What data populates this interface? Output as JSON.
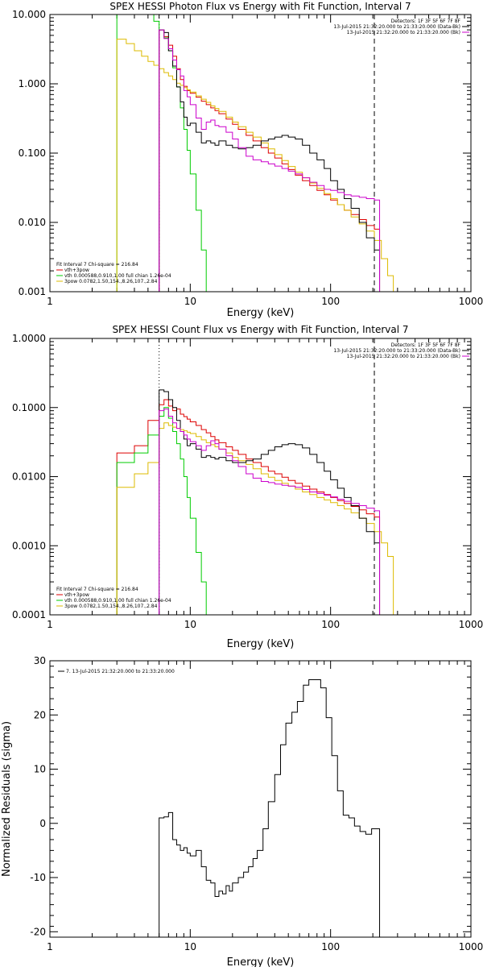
{
  "colors": {
    "data": "#000000",
    "vth_3pow": "#dd0000",
    "vth": "#00cc00",
    "3pow": "#ddbb00",
    "background": "#cc00cc"
  },
  "chart_data": [
    {
      "type": "line",
      "title": "SPEX HESSI Photon Flux vs Energy with Fit Function, Interval 7",
      "xlabel": "Energy (keV)",
      "ylabel": "",
      "xscale": "log",
      "yscale": "log",
      "xlim": [
        1,
        1000
      ],
      "ylim": [
        0.001,
        10
      ],
      "xticks": [
        1,
        10,
        100,
        1000
      ],
      "xtick_labels": [
        "1",
        "10",
        "100",
        "1000"
      ],
      "yticks": [
        0.001,
        0.01,
        0.1,
        1,
        10
      ],
      "ytick_labels": [
        "0.001",
        "0.010",
        "0.100",
        "1.000",
        "10.000"
      ],
      "grid": false,
      "vlines": [
        {
          "x": 6,
          "style": "dotted"
        },
        {
          "x": 205,
          "style": "dashed"
        }
      ],
      "info_lines": [
        "Detectors: 1F 3F 5F 6F 7F 8F",
        "13-Jul-2015 21:32:20.000 to 21:33:20.000 (Data-Bk)",
        "13-Jul-2015 21:32:20.000 to 21:33:20.000 (Bk)"
      ],
      "legend_lines": [
        "Fit Interval 7   Chi-square = 216.84",
        "vth+3pow",
        "vth 0.000588,0.910,1.00  full chian 1.26e-04",
        "3pow 0.0782,1.50,154.,8.26,107.,2.84"
      ],
      "series": [
        {
          "key": "vth_3pow",
          "x": [
            6,
            6.5,
            7,
            7.5,
            8,
            8.5,
            9,
            9.5,
            10,
            11,
            12,
            13,
            14,
            15,
            16,
            18,
            20,
            22,
            25,
            28,
            32,
            36,
            40,
            45,
            50,
            56,
            63,
            71,
            80,
            90,
            100,
            112,
            125,
            140,
            160,
            180,
            205
          ],
          "y": [
            6,
            4.8,
            3.6,
            2.5,
            1.65,
            1.15,
            0.92,
            0.8,
            0.73,
            0.64,
            0.56,
            0.5,
            0.45,
            0.41,
            0.37,
            0.31,
            0.26,
            0.22,
            0.18,
            0.15,
            0.12,
            0.1,
            0.085,
            0.07,
            0.058,
            0.048,
            0.04,
            0.034,
            0.029,
            0.025,
            0.021,
            0.018,
            0.015,
            0.013,
            0.011,
            0.009,
            0.008
          ]
        },
        {
          "key": "vth",
          "x": [
            3,
            3.5,
            4,
            4.5,
            5,
            5.5,
            6,
            6.5,
            7,
            7.5,
            8,
            8.5,
            9,
            9.5,
            10,
            11,
            12,
            13
          ],
          "y": [
            10,
            10,
            10,
            10,
            10,
            8,
            6,
            4.6,
            3,
            1.7,
            0.9,
            0.45,
            0.22,
            0.11,
            0.05,
            0.015,
            0.004,
            0.001
          ]
        },
        {
          "key": "3pow",
          "x": [
            3,
            3.5,
            4,
            4.5,
            5,
            5.5,
            6,
            6.5,
            7,
            7.5,
            8,
            8.5,
            9,
            9.5,
            10,
            11,
            12,
            13,
            14,
            15,
            16,
            18,
            20,
            22,
            25,
            28,
            32,
            36,
            40,
            45,
            50,
            56,
            63,
            71,
            80,
            90,
            100,
            112,
            125,
            140,
            160,
            180,
            205,
            230,
            255,
            280
          ],
          "y": [
            4.4,
            3.8,
            3.0,
            2.5,
            2.1,
            1.85,
            1.65,
            1.45,
            1.3,
            1.15,
            1.02,
            0.95,
            0.88,
            0.82,
            0.76,
            0.67,
            0.6,
            0.54,
            0.48,
            0.44,
            0.4,
            0.33,
            0.28,
            0.24,
            0.2,
            0.17,
            0.14,
            0.115,
            0.095,
            0.078,
            0.064,
            0.053,
            0.044,
            0.037,
            0.031,
            0.026,
            0.022,
            0.018,
            0.015,
            0.012,
            0.0095,
            0.0075,
            0.0055,
            0.003,
            0.0017,
            0.001
          ]
        },
        {
          "key": "data",
          "x": [
            6,
            6.5,
            7,
            7.5,
            8,
            8.5,
            9,
            9.5,
            10,
            11,
            12,
            13,
            14,
            15,
            16,
            18,
            20,
            22,
            25,
            28,
            32,
            36,
            40,
            45,
            50,
            56,
            63,
            71,
            80,
            90,
            100,
            112,
            125,
            140,
            160,
            180,
            205
          ],
          "y": [
            6.0,
            5.5,
            3.0,
            1.8,
            0.9,
            0.55,
            0.33,
            0.25,
            0.27,
            0.2,
            0.14,
            0.15,
            0.14,
            0.13,
            0.15,
            0.13,
            0.12,
            0.115,
            0.12,
            0.13,
            0.15,
            0.16,
            0.17,
            0.18,
            0.17,
            0.16,
            0.13,
            0.1,
            0.08,
            0.06,
            0.04,
            0.03,
            0.022,
            0.016,
            0.01,
            0.006,
            0.004
          ]
        },
        {
          "key": "background",
          "x": [
            6,
            6.5,
            7,
            7.5,
            8,
            8.5,
            9,
            9.5,
            10,
            11,
            12,
            13,
            14,
            15,
            16,
            18,
            20,
            22,
            25,
            28,
            32,
            36,
            40,
            45,
            50,
            56,
            63,
            71,
            80,
            90,
            100,
            112,
            125,
            140,
            160,
            180,
            205
          ],
          "y": [
            6,
            4.5,
            3.2,
            2.2,
            1.6,
            1.3,
            0.8,
            0.65,
            0.5,
            0.32,
            0.22,
            0.28,
            0.3,
            0.25,
            0.24,
            0.2,
            0.16,
            0.12,
            0.09,
            0.08,
            0.075,
            0.07,
            0.065,
            0.06,
            0.055,
            0.05,
            0.044,
            0.038,
            0.034,
            0.03,
            0.029,
            0.027,
            0.025,
            0.024,
            0.023,
            0.022,
            0.021
          ]
        }
      ]
    },
    {
      "type": "line",
      "title": "SPEX HESSI Count Flux vs Energy with Fit Function, Interval 7",
      "xlabel": "Energy (keV)",
      "ylabel": "",
      "xscale": "log",
      "yscale": "log",
      "xlim": [
        1,
        1000
      ],
      "ylim": [
        0.0001,
        1
      ],
      "xticks": [
        1,
        10,
        100,
        1000
      ],
      "xtick_labels": [
        "1",
        "10",
        "100",
        "1000"
      ],
      "yticks": [
        0.0001,
        0.001,
        0.01,
        0.1,
        1
      ],
      "ytick_labels": [
        "0.0001",
        "0.0010",
        "0.0100",
        "0.1000",
        "1.0000"
      ],
      "grid": false,
      "vlines": [
        {
          "x": 6,
          "style": "dotted"
        },
        {
          "x": 205,
          "style": "dashed"
        }
      ],
      "info_lines": [
        "Detectors: 1F 3F 5F 6F 7F 8F",
        "13-Jul-2015 21:32:20.000 to 21:33:20.000 (Data-Bk)",
        "13-Jul-2015 21:32:20.000 to 21:33:20.000 (Bk)"
      ],
      "legend_lines": [
        "Fit Interval 7   Chi-square = 216.84",
        "vth+3pow",
        "vth 0.000588,0.910,1.00  full chian 1.26e-04",
        "3pow 0.0782,1.50,154.,8.26,107.,2.84"
      ],
      "series": [
        {
          "key": "vth_3pow",
          "x": [
            3,
            4,
            5,
            6,
            6.5,
            7,
            7.5,
            8,
            8.5,
            9,
            9.5,
            10,
            11,
            12,
            13,
            14,
            15,
            16,
            18,
            20,
            22,
            25,
            28,
            32,
            36,
            40,
            45,
            50,
            56,
            63,
            71,
            80,
            90,
            100,
            112,
            125,
            140,
            160,
            180,
            205
          ],
          "y": [
            0.022,
            0.028,
            0.065,
            0.11,
            0.13,
            0.105,
            0.09,
            0.095,
            0.08,
            0.074,
            0.068,
            0.062,
            0.055,
            0.048,
            0.043,
            0.038,
            0.034,
            0.031,
            0.027,
            0.024,
            0.021,
            0.018,
            0.016,
            0.014,
            0.012,
            0.011,
            0.0098,
            0.0088,
            0.008,
            0.0073,
            0.0066,
            0.006,
            0.0055,
            0.005,
            0.0045,
            0.0041,
            0.0037,
            0.0033,
            0.0029,
            0.0026
          ]
        },
        {
          "key": "vth",
          "x": [
            3,
            4,
            5,
            6,
            6.5,
            7,
            7.5,
            8,
            8.5,
            9,
            9.5,
            10,
            11,
            12,
            13,
            14
          ],
          "y": [
            0.016,
            0.022,
            0.04,
            0.075,
            0.1,
            0.07,
            0.045,
            0.03,
            0.018,
            0.01,
            0.005,
            0.0025,
            0.0008,
            0.0003,
            0.0001,
            0.0001
          ]
        },
        {
          "key": "3pow",
          "x": [
            3,
            4,
            5,
            6,
            6.5,
            7,
            7.5,
            8,
            8.5,
            9,
            9.5,
            10,
            11,
            12,
            13,
            14,
            15,
            16,
            18,
            20,
            22,
            25,
            28,
            32,
            36,
            40,
            45,
            50,
            56,
            63,
            71,
            80,
            90,
            100,
            112,
            125,
            140,
            160,
            180,
            205,
            230,
            255,
            280
          ],
          "y": [
            0.007,
            0.011,
            0.016,
            0.05,
            0.06,
            0.055,
            0.052,
            0.05,
            0.048,
            0.046,
            0.044,
            0.042,
            0.038,
            0.034,
            0.031,
            0.029,
            0.027,
            0.025,
            0.022,
            0.019,
            0.017,
            0.015,
            0.013,
            0.011,
            0.0098,
            0.0088,
            0.008,
            0.0073,
            0.0066,
            0.006,
            0.0055,
            0.005,
            0.0046,
            0.0042,
            0.0038,
            0.0034,
            0.003,
            0.0025,
            0.0021,
            0.0016,
            0.0011,
            0.0007,
            0.0001
          ]
        },
        {
          "key": "data",
          "x": [
            6,
            6.5,
            7,
            7.5,
            8,
            8.5,
            9,
            9.5,
            10,
            11,
            12,
            13,
            14,
            15,
            16,
            18,
            20,
            22,
            25,
            28,
            32,
            36,
            40,
            45,
            50,
            56,
            63,
            71,
            80,
            90,
            100,
            112,
            125,
            140,
            160,
            180,
            205
          ],
          "y": [
            0.18,
            0.17,
            0.13,
            0.1,
            0.065,
            0.045,
            0.035,
            0.028,
            0.03,
            0.025,
            0.019,
            0.02,
            0.019,
            0.018,
            0.019,
            0.017,
            0.016,
            0.016,
            0.017,
            0.018,
            0.021,
            0.024,
            0.027,
            0.029,
            0.03,
            0.029,
            0.026,
            0.021,
            0.016,
            0.012,
            0.009,
            0.0068,
            0.005,
            0.0038,
            0.0025,
            0.0016,
            0.0011
          ]
        },
        {
          "key": "background",
          "x": [
            6,
            6.5,
            7,
            7.5,
            8,
            8.5,
            9,
            9.5,
            10,
            11,
            12,
            13,
            14,
            15,
            16,
            18,
            20,
            22,
            25,
            28,
            32,
            36,
            40,
            45,
            50,
            56,
            63,
            71,
            80,
            90,
            100,
            112,
            125,
            140,
            160,
            180,
            205
          ],
          "y": [
            0.09,
            0.095,
            0.075,
            0.06,
            0.05,
            0.045,
            0.04,
            0.035,
            0.032,
            0.028,
            0.024,
            0.028,
            0.033,
            0.03,
            0.025,
            0.02,
            0.017,
            0.014,
            0.011,
            0.0095,
            0.0085,
            0.0082,
            0.0078,
            0.0075,
            0.0073,
            0.007,
            0.0065,
            0.006,
            0.0057,
            0.0054,
            0.0051,
            0.0047,
            0.0044,
            0.0041,
            0.0038,
            0.0035,
            0.0032
          ]
        }
      ]
    },
    {
      "type": "line",
      "title": "",
      "xlabel": "Energy (keV)",
      "ylabel": "Normalized Residuals (sigma)",
      "xscale": "log",
      "yscale": "linear",
      "xlim": [
        1,
        1000
      ],
      "ylim": [
        -21,
        30
      ],
      "xticks": [
        1,
        10,
        100,
        1000
      ],
      "xtick_labels": [
        "1",
        "10",
        "100",
        "1000"
      ],
      "yticks": [
        -20,
        -10,
        0,
        10,
        20,
        30
      ],
      "ytick_labels": [
        "-20",
        "-10",
        "0",
        "10",
        "20",
        "30"
      ],
      "grid": false,
      "legend_lines": [
        "7. 13-Jul-2015 21:32:20.000 to 21:33:20.000"
      ],
      "series": [
        {
          "key": "data",
          "x": [
            6,
            6.5,
            7,
            7.5,
            8,
            8.5,
            9,
            9.5,
            10,
            11,
            12,
            13,
            14,
            15,
            16,
            17,
            18,
            19,
            20,
            22,
            24,
            26,
            28,
            30,
            33,
            36,
            40,
            44,
            48,
            53,
            58,
            64,
            70,
            77,
            85,
            93,
            102,
            112,
            123,
            135,
            148,
            162,
            178,
            196,
            205
          ],
          "y": [
            1,
            1.2,
            2,
            -3,
            -4,
            -5,
            -4.5,
            -5.5,
            -6,
            -5,
            -8,
            -10.5,
            -11,
            -13.5,
            -12.5,
            -13,
            -11.5,
            -12.5,
            -11,
            -10,
            -9,
            -8,
            -6.5,
            -5,
            -1,
            4,
            9,
            14.5,
            18.5,
            20.5,
            22.5,
            25.5,
            26.5,
            26.5,
            25,
            19.5,
            12.5,
            6,
            1.5,
            1,
            -0.5,
            -1.5,
            -2,
            -1,
            -1
          ]
        }
      ]
    }
  ]
}
